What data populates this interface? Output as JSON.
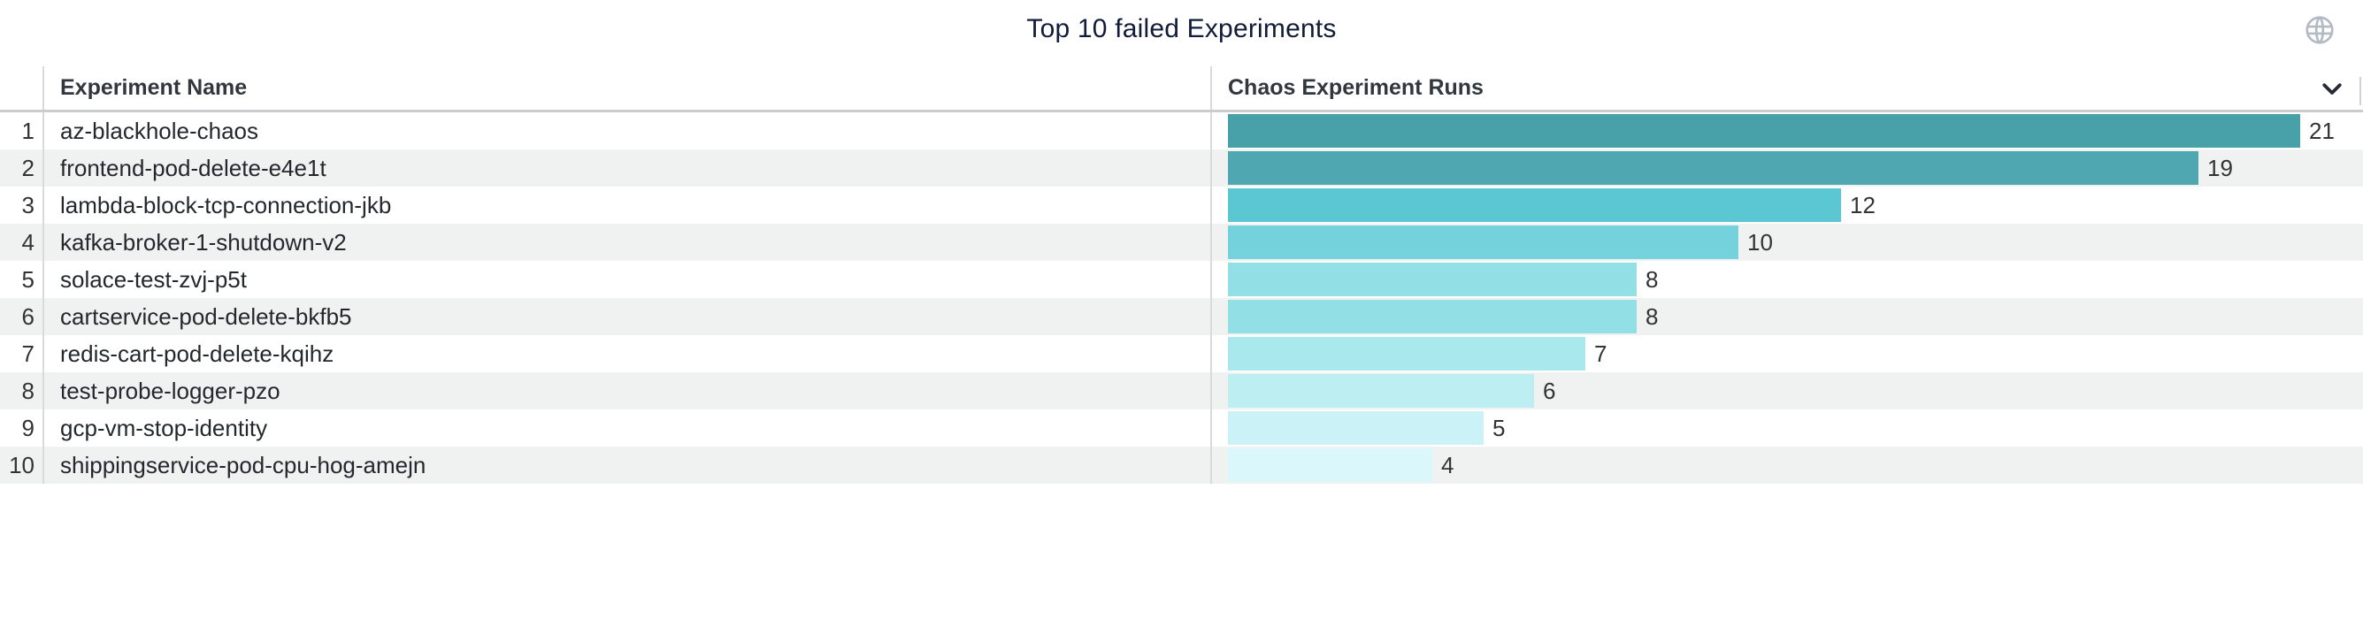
{
  "widget": {
    "title": "Top 10 failed Experiments",
    "columns": {
      "name": "Experiment Name",
      "runs": "Chaos Experiment Runs"
    },
    "icons": {
      "globe": "globe-icon",
      "chevron": "chevron-down-icon"
    }
  },
  "colors": {
    "stripe": "#f0f2f2",
    "divider": "#d8dbde",
    "header_underline": "#c9cdd0",
    "title_text": "#101c38",
    "header_text": "#31373d",
    "cell_text": "#24282c",
    "value_text": "#333333",
    "globe_icon": "#b4bac4",
    "chevron_icon": "#262c34"
  },
  "rows": [
    {
      "rank": "1",
      "name": "az-blackhole-chaos",
      "value": 21,
      "color": "#48a0a9"
    },
    {
      "rank": "2",
      "name": "frontend-pod-delete-e4e1t",
      "value": 19,
      "color": "#4fa8b1"
    },
    {
      "rank": "3",
      "name": "lambda-block-tcp-connection-jkb",
      "value": 12,
      "color": "#5bc7d3"
    },
    {
      "rank": "4",
      "name": "kafka-broker-1-shutdown-v2",
      "value": 10,
      "color": "#73d2dc"
    },
    {
      "rank": "5",
      "name": "solace-test-zvj-p5t",
      "value": 8,
      "color": "#92dfe6"
    },
    {
      "rank": "6",
      "name": "cartservice-pod-delete-bkfb5",
      "value": 8,
      "color": "#92dfe6"
    },
    {
      "rank": "7",
      "name": "redis-cart-pod-delete-kqihz",
      "value": 7,
      "color": "#a9e8ed"
    },
    {
      "rank": "8",
      "name": "test-probe-logger-pzo",
      "value": 6,
      "color": "#bceef2"
    },
    {
      "rank": "9",
      "name": "gcp-vm-stop-identity",
      "value": 5,
      "color": "#cbf3f7"
    },
    {
      "rank": "10",
      "name": "shippingservice-pod-cpu-hog-amejn",
      "value": 4,
      "color": "#daf8fb"
    }
  ],
  "chart_data": {
    "type": "bar",
    "orientation": "horizontal",
    "title": "Top 10 failed Experiments",
    "xlabel": "Chaos Experiment Runs",
    "ylabel": "Experiment Name",
    "categories": [
      "az-blackhole-chaos",
      "frontend-pod-delete-e4e1t",
      "lambda-block-tcp-connection-jkb",
      "kafka-broker-1-shutdown-v2",
      "solace-test-zvj-p5t",
      "cartservice-pod-delete-bkfb5",
      "redis-cart-pod-delete-kqihz",
      "test-probe-logger-pzo",
      "gcp-vm-stop-identity",
      "shippingservice-pod-cpu-hog-amejn"
    ],
    "values": [
      21,
      19,
      12,
      10,
      8,
      8,
      7,
      6,
      5,
      4
    ],
    "bar_colors": [
      "#48a0a9",
      "#4fa8b1",
      "#5bc7d3",
      "#73d2dc",
      "#92dfe6",
      "#92dfe6",
      "#a9e8ed",
      "#bceef2",
      "#cbf3f7",
      "#daf8fb"
    ],
    "xlim": [
      0,
      21
    ],
    "value_labels": true,
    "legend": "none",
    "grid": false
  }
}
